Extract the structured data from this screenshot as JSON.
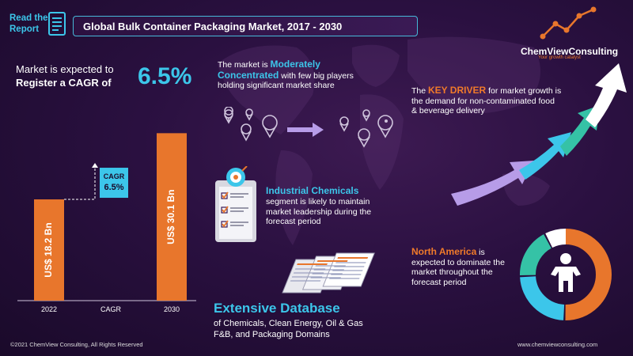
{
  "header": {
    "read_line1": "Read the",
    "read_line2": "Report",
    "title": "Global Bulk Container Packaging Market, 2017  - 2030"
  },
  "cagr_callout": {
    "line1": "Market is expected to",
    "line2": "Register a CAGR of",
    "value": "6.5%"
  },
  "chart_data": {
    "type": "bar",
    "categories": [
      "2022",
      "CAGR",
      "2030"
    ],
    "values": [
      18.2,
      null,
      30.1
    ],
    "data_labels": [
      "US$ 18.2 Bn",
      "",
      "US$ 30.1 Bn"
    ],
    "cagr_badge": {
      "line1": "CAGR",
      "line2": "6.5%"
    },
    "bar_color": "#e8762c",
    "badge_color": "#3cc6ea",
    "ylim": [
      0,
      32
    ]
  },
  "concentration": {
    "prefix": "The market is ",
    "highlight": "Moderately Concentrated",
    "suffix": " with few big players holding significant market share"
  },
  "segment": {
    "highlight": "Industrial Chemicals",
    "text": "segment is likely to maintain market leadership during the forecast period"
  },
  "driver": {
    "prefix": "The ",
    "highlight": "KEY DRIVER",
    "suffix": " for market growth is the demand for non-contaminated food & beverage delivery"
  },
  "region": {
    "highlight": "North America",
    "suffix": " is expected to dominate the market throughout the forecast period"
  },
  "database": {
    "title": "Extensive Database",
    "line1": "of Chemicals, Clean Energy, Oil & Gas",
    "line2": "F&B, and Packaging Domains"
  },
  "logo": {
    "name": "ChemViewConsulting",
    "tagline": "Your growth catalyst"
  },
  "footer": {
    "copyright": "©2021  ChemView  Consulting,  All Rights Reserved",
    "website": "www.chemviewconsulting.com"
  },
  "colors": {
    "accent": "#3cc6ea",
    "orange": "#e8762c",
    "purple": "#b79ce8",
    "teal": "#35c2a6"
  }
}
